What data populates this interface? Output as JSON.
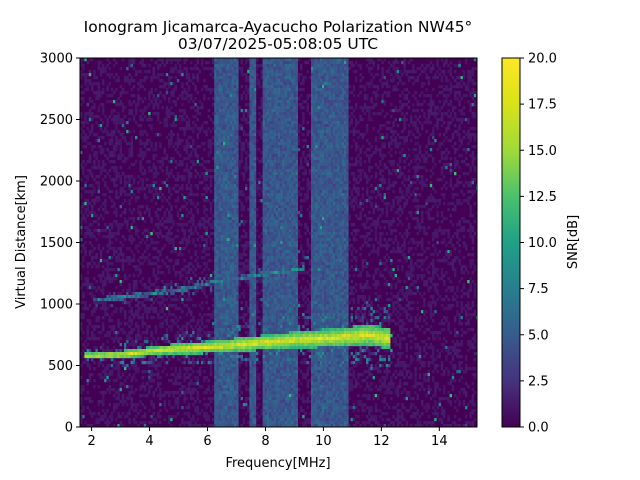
{
  "chart_data": {
    "type": "heatmap",
    "title": "Ionogram Jicamarca-Ayacucho Polarization NW45°",
    "subtitle": "03/07/2025-05:08:05 UTC",
    "xlabel": "Frequency[MHz]",
    "ylabel": "Virtual Distance[km]",
    "xlim": [
      1.6,
      15.3
    ],
    "ylim": [
      0,
      3000
    ],
    "xticks": [
      "2",
      "4",
      "6",
      "8",
      "10",
      "12",
      "14"
    ],
    "xtick_values": [
      2,
      4,
      6,
      8,
      10,
      12,
      14
    ],
    "yticks": [
      "0",
      "500",
      "1000",
      "1500",
      "2000",
      "2500",
      "3000"
    ],
    "ytick_values": [
      0,
      500,
      1000,
      1500,
      2000,
      2500,
      3000
    ],
    "colorbar": {
      "label": "SNR[dB]",
      "range": [
        0,
        20
      ],
      "ticks": [
        "0.0",
        "2.5",
        "5.0",
        "7.5",
        "10.0",
        "12.5",
        "15.0",
        "17.5",
        "20.0"
      ],
      "tick_values": [
        0,
        2.5,
        5,
        7.5,
        10,
        12.5,
        15,
        17.5,
        20
      ],
      "colormap": "viridis"
    },
    "traces": [
      {
        "label": "lower echo trace",
        "snr_db": 20,
        "points": [
          [
            1.7,
            590
          ],
          [
            3.0,
            600
          ],
          [
            4.5,
            640
          ],
          [
            6.0,
            660
          ],
          [
            7.5,
            690
          ],
          [
            9.0,
            720
          ],
          [
            10.5,
            740
          ],
          [
            11.5,
            760
          ],
          [
            12.3,
            730
          ]
        ]
      },
      {
        "label": "upper echo trace",
        "snr_db": 12,
        "points": [
          [
            2.0,
            1040
          ],
          [
            3.5,
            1080
          ],
          [
            5.0,
            1130
          ],
          [
            6.5,
            1200
          ],
          [
            8.0,
            1260
          ],
          [
            9.3,
            1300
          ]
        ]
      }
    ],
    "noise_bands_mhz": [
      [
        6.2,
        7.0
      ],
      [
        7.4,
        7.6
      ],
      [
        7.9,
        9.1
      ],
      [
        9.5,
        10.8
      ]
    ],
    "background_snr_db": 1
  }
}
